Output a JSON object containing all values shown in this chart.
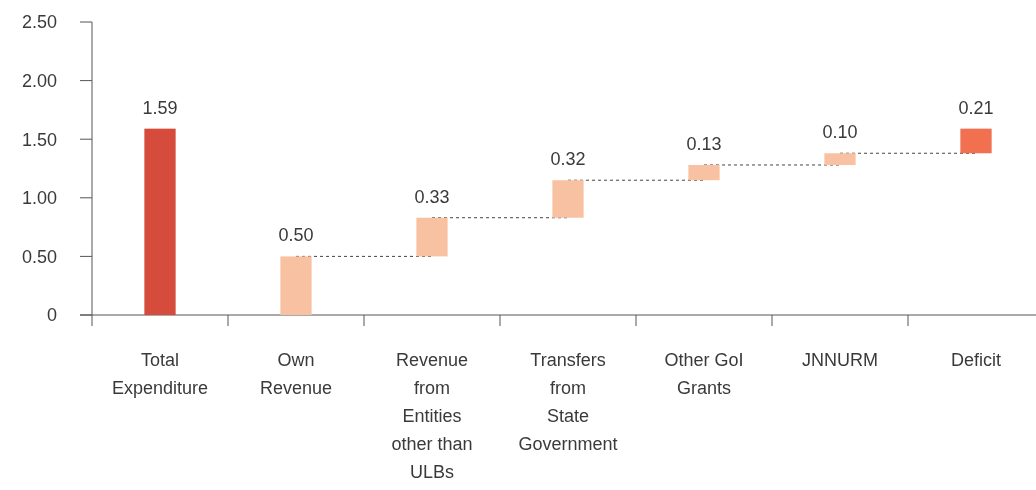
{
  "chart_data": {
    "type": "bar",
    "categories": [
      "Total\nExpenditure",
      "Own\nRevenue",
      "Revenue\nfrom\nEntities\nother than\nULBs",
      "Transfers\nfrom\nState\nGovernment",
      "Other GoI\nGrants",
      "JNNURM",
      "Deficit"
    ],
    "values": [
      1.59,
      0.5,
      0.33,
      0.32,
      0.13,
      0.1,
      0.21
    ],
    "base": [
      0,
      0,
      0.5,
      0.83,
      1.15,
      1.28,
      1.38
    ],
    "colors": [
      "#d64c3c",
      "#f8c2a2",
      "#f8c2a2",
      "#f8c2a2",
      "#f8c2a2",
      "#f8c2a2",
      "#f07050"
    ],
    "value_labels": [
      "1.59",
      "0.50",
      "0.33",
      "0.32",
      "0.13",
      "0.10",
      "0.21"
    ],
    "ylim": [
      0,
      2.5
    ],
    "yticks": [
      0,
      {
        "value": 0.5,
        "label": "0.50"
      },
      {
        "value": 1,
        "label": "1.00"
      },
      {
        "value": 1.5,
        "label": "1.50"
      },
      {
        "value": 2,
        "label": "2.00"
      },
      {
        "value": 2.5,
        "label": "2.50"
      }
    ]
  }
}
